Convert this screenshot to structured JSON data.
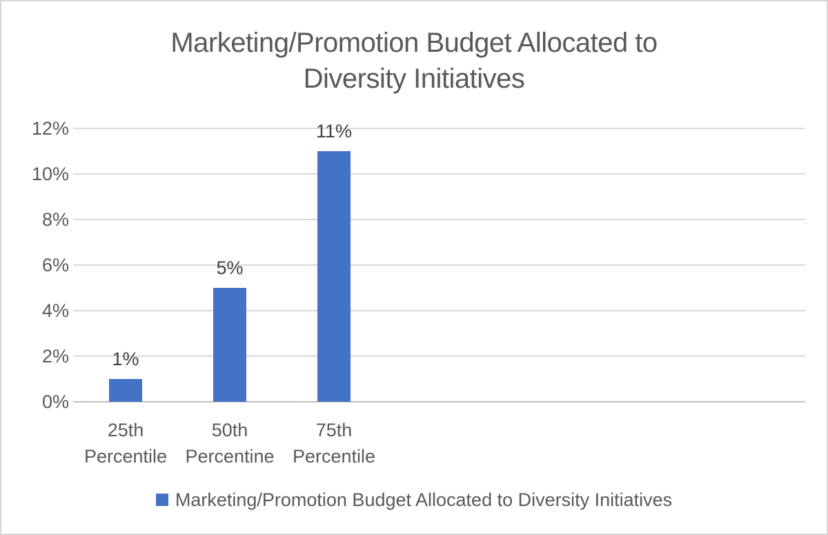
{
  "window": {
    "background": "#ffffff",
    "border_color": "#d6d6d6"
  },
  "chart_data": {
    "type": "bar",
    "title": "Marketing/Promotion Budget Allocated to Diversity Initiatives",
    "title_lines": [
      "Marketing/Promotion Budget Allocated to",
      "Diversity Initiatives"
    ],
    "categories": [
      "25th Percentile",
      "50th Percentine",
      "75th Percentile"
    ],
    "category_lines": [
      [
        "25th",
        "Percentile"
      ],
      [
        "50th",
        "Percentine"
      ],
      [
        "75th",
        "Percentile"
      ]
    ],
    "values": [
      1,
      5,
      11
    ],
    "data_labels": [
      "1%",
      "5%",
      "11%"
    ],
    "y_tick_labels": [
      "12%",
      "10%",
      "8%",
      "6%",
      "4%",
      "2%",
      "0%"
    ],
    "y_tick_values": [
      12,
      10,
      8,
      6,
      4,
      2,
      0
    ],
    "ylim": [
      0,
      12
    ],
    "y_step": 2,
    "xlabel": "",
    "ylabel": "",
    "grid": true,
    "legend_position": "bottom",
    "legend": {
      "label": "Marketing/Promotion Budget Allocated to Diversity Initiatives"
    },
    "colors": {
      "bar": "#4472C4",
      "gridline": "#D9D9D9",
      "axis_line": "#BFBFBF",
      "title_text": "#595959",
      "axis_text": "#595959",
      "data_label_text": "#404040",
      "legend_swatch": "#4472C4",
      "legend_text": "#595959"
    }
  }
}
